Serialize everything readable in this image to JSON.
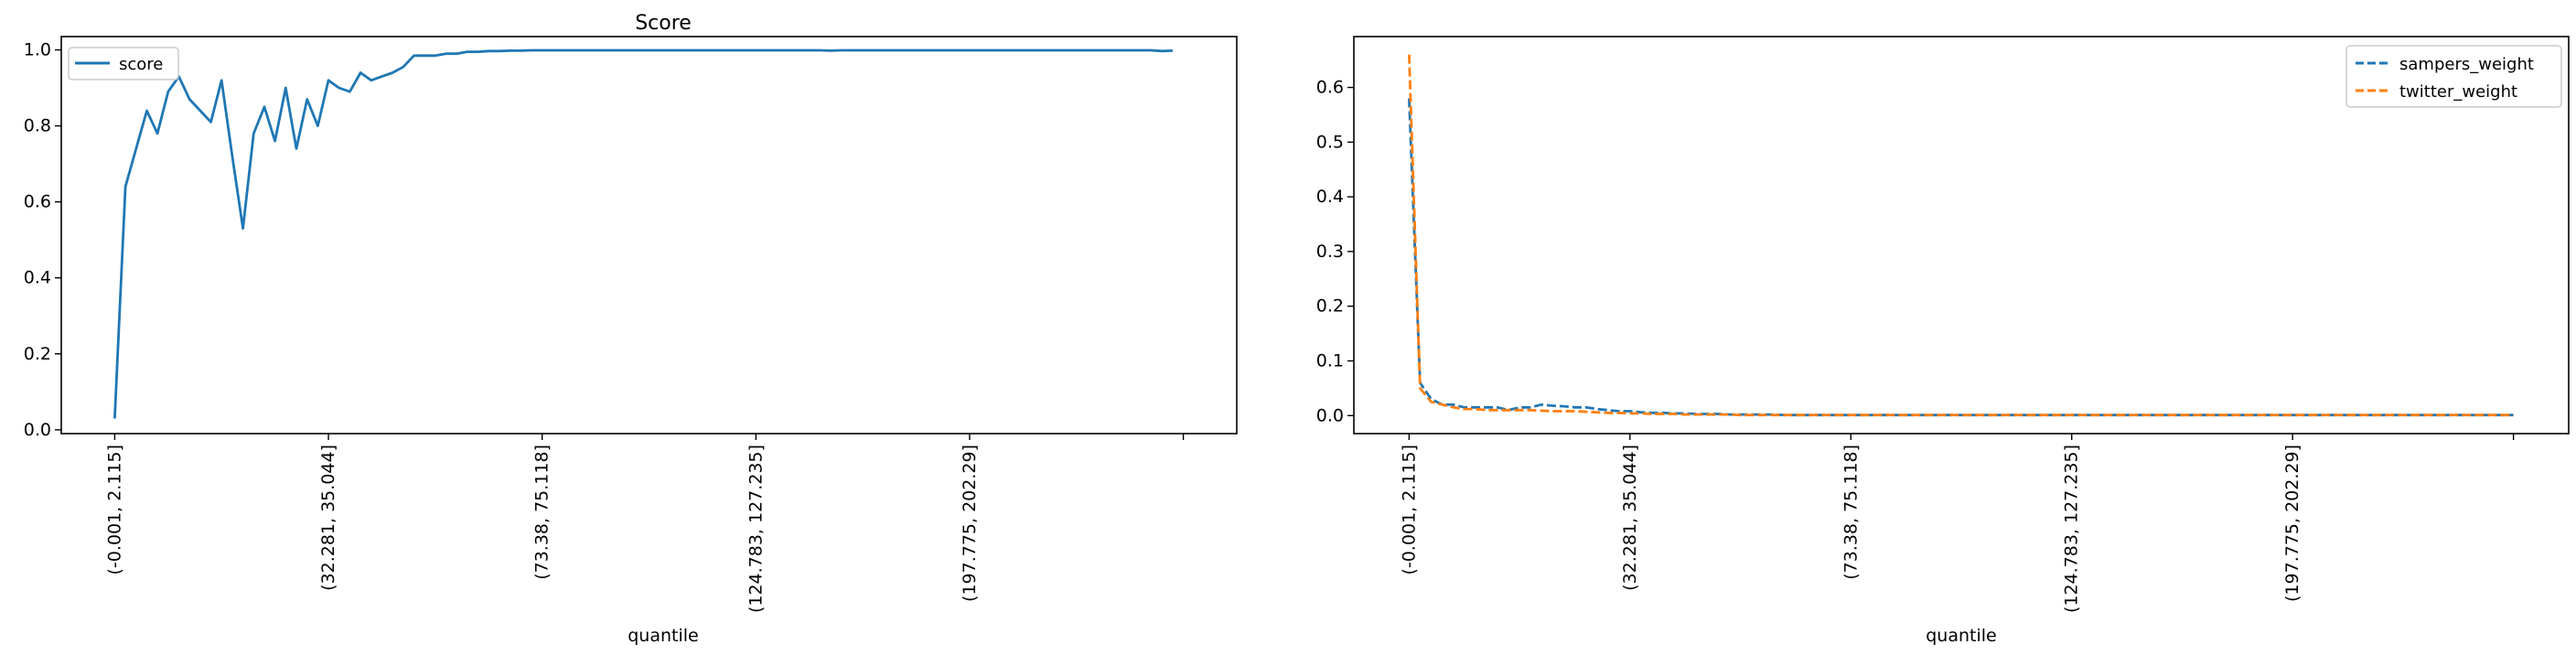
{
  "chart_data": [
    {
      "type": "line",
      "title": "Score",
      "xlabel": "quantile",
      "ylabel": "",
      "ylim": [
        -0.01,
        1.035
      ],
      "xlim": [
        -5,
        105
      ],
      "grid": false,
      "legend_position": "top-left",
      "xtick_positions": [
        0,
        20,
        40,
        60,
        80,
        100
      ],
      "xtick_labels": [
        "(-0.001, 2.115]",
        "(32.281, 35.044]",
        "(73.38, 75.118]",
        "(124.783, 127.235]",
        "(197.775, 202.29]",
        ""
      ],
      "yticks": [
        0.0,
        0.2,
        0.4,
        0.6,
        0.8,
        1.0
      ],
      "ytick_labels": [
        "0.0",
        "0.2",
        "0.4",
        "0.6",
        "0.8",
        "1.0"
      ],
      "series": [
        {
          "name": "score",
          "color": "#1f77b4",
          "dash": "solid",
          "x": [
            0,
            1,
            2,
            3,
            4,
            5,
            6,
            7,
            8,
            9,
            10,
            11,
            12,
            13,
            14,
            15,
            16,
            17,
            18,
            19,
            20,
            21,
            22,
            23,
            24,
            25,
            26,
            27,
            28,
            29,
            30,
            31,
            32,
            33,
            34,
            35,
            36,
            37,
            38,
            39,
            40,
            41,
            42,
            43,
            44,
            45,
            46,
            47,
            48,
            49,
            50,
            51,
            52,
            53,
            54,
            55,
            56,
            57,
            58,
            59,
            60,
            61,
            62,
            63,
            64,
            65,
            66,
            67,
            68,
            69,
            70,
            71,
            72,
            73,
            74,
            75,
            76,
            77,
            78,
            79,
            80,
            81,
            82,
            83,
            84,
            85,
            86,
            87,
            88,
            89,
            90,
            91,
            92,
            93,
            94,
            95,
            96,
            97,
            98,
            99
          ],
          "y": [
            0.03,
            0.64,
            0.74,
            0.84,
            0.78,
            0.89,
            0.93,
            0.87,
            0.84,
            0.81,
            0.92,
            0.72,
            0.53,
            0.78,
            0.85,
            0.76,
            0.9,
            0.74,
            0.87,
            0.8,
            0.92,
            0.9,
            0.89,
            0.94,
            0.92,
            0.93,
            0.94,
            0.955,
            0.985,
            0.985,
            0.985,
            0.99,
            0.99,
            0.995,
            0.995,
            0.997,
            0.997,
            0.998,
            0.998,
            0.999,
            0.999,
            0.999,
            0.999,
            0.999,
            0.999,
            0.999,
            0.999,
            0.999,
            0.999,
            0.999,
            0.999,
            0.999,
            0.999,
            0.999,
            0.999,
            0.999,
            0.999,
            0.999,
            0.999,
            0.999,
            0.999,
            0.999,
            0.999,
            0.999,
            0.999,
            0.999,
            0.999,
            0.998,
            0.999,
            0.999,
            0.999,
            0.999,
            0.999,
            0.999,
            0.999,
            0.999,
            0.999,
            0.999,
            0.999,
            0.999,
            0.999,
            0.999,
            0.999,
            0.999,
            0.999,
            0.999,
            0.999,
            0.999,
            0.999,
            0.999,
            0.999,
            0.999,
            0.999,
            0.999,
            0.999,
            0.999,
            0.999,
            0.999,
            0.997,
            0.998
          ]
        }
      ]
    },
    {
      "type": "line",
      "title": "",
      "xlabel": "quantile",
      "ylabel": "",
      "ylim": [
        -0.033,
        0.693
      ],
      "xlim": [
        -5,
        105
      ],
      "grid": false,
      "legend_position": "top-right",
      "xtick_positions": [
        0,
        20,
        40,
        60,
        80,
        100
      ],
      "xtick_labels": [
        "(-0.001, 2.115]",
        "(32.281, 35.044]",
        "(73.38, 75.118]",
        "(124.783, 127.235]",
        "(197.775, 202.29]",
        ""
      ],
      "yticks": [
        0.0,
        0.1,
        0.2,
        0.3,
        0.4,
        0.5,
        0.6
      ],
      "ytick_labels": [
        "0.0",
        "0.1",
        "0.2",
        "0.3",
        "0.4",
        "0.5",
        "0.6"
      ],
      "series": [
        {
          "name": "sampers_weight",
          "color": "#1f77b4",
          "dash": "dashed",
          "x": [
            0,
            1,
            2,
            3,
            4,
            5,
            6,
            7,
            8,
            9,
            10,
            11,
            12,
            13,
            14,
            15,
            16,
            17,
            18,
            19,
            20,
            21,
            22,
            23,
            24,
            25,
            26,
            27,
            28,
            29,
            30,
            31,
            32,
            33,
            34,
            35,
            36,
            37,
            38,
            39,
            40,
            41,
            42,
            43,
            44,
            45,
            46,
            47,
            48,
            49,
            50,
            51,
            52,
            53,
            54,
            55,
            56,
            57,
            58,
            59,
            60,
            61,
            62,
            63,
            64,
            65,
            66,
            67,
            68,
            69,
            70,
            71,
            72,
            73,
            74,
            75,
            76,
            77,
            78,
            79,
            80,
            81,
            82,
            83,
            84,
            85,
            86,
            87,
            88,
            89,
            90,
            91,
            92,
            93,
            94,
            95,
            96,
            97,
            98,
            99,
            100
          ],
          "y": [
            0.58,
            0.06,
            0.03,
            0.02,
            0.02,
            0.015,
            0.015,
            0.015,
            0.015,
            0.01,
            0.015,
            0.015,
            0.02,
            0.018,
            0.017,
            0.015,
            0.015,
            0.012,
            0.01,
            0.008,
            0.008,
            0.006,
            0.005,
            0.005,
            0.004,
            0.004,
            0.003,
            0.003,
            0.003,
            0.002,
            0.002,
            0.002,
            0.002,
            0.002,
            0.001,
            0.001,
            0.001,
            0.001,
            0.001,
            0.001,
            0.001,
            0.001,
            0.001,
            0.001,
            0.001,
            0.001,
            0.001,
            0.001,
            0.001,
            0.001,
            0.001,
            0.001,
            0.001,
            0.001,
            0.001,
            0.001,
            0.001,
            0.001,
            0.001,
            0.001,
            0.001,
            0.001,
            0.001,
            0.001,
            0.001,
            0.001,
            0.001,
            0.001,
            0.001,
            0.001,
            0.001,
            0.001,
            0.001,
            0.001,
            0.001,
            0.001,
            0.001,
            0.001,
            0.001,
            0.001,
            0.001,
            0.001,
            0.001,
            0.001,
            0.001,
            0.001,
            0.001,
            0.001,
            0.001,
            0.001,
            0.001,
            0.001,
            0.001,
            0.001,
            0.001,
            0.001,
            0.001,
            0.001,
            0.001,
            0.001,
            0.001
          ]
        },
        {
          "name": "twitter_weight",
          "color": "#ff7f0e",
          "dash": "dashed",
          "x": [
            0,
            1,
            2,
            3,
            4,
            5,
            6,
            7,
            8,
            9,
            10,
            11,
            12,
            13,
            14,
            15,
            16,
            17,
            18,
            19,
            20,
            21,
            22,
            23,
            24,
            25,
            26,
            27,
            28,
            29,
            30,
            31,
            32,
            33,
            34,
            35,
            36,
            37,
            38,
            39,
            40,
            41,
            42,
            43,
            44,
            45,
            46,
            47,
            48,
            49,
            50,
            51,
            52,
            53,
            54,
            55,
            56,
            57,
            58,
            59,
            60,
            61,
            62,
            63,
            64,
            65,
            66,
            67,
            68,
            69,
            70,
            71,
            72,
            73,
            74,
            75,
            76,
            77,
            78,
            79,
            80,
            81,
            82,
            83,
            84,
            85,
            86,
            87,
            88,
            89,
            90,
            91,
            92,
            93,
            94,
            95,
            96,
            97,
            98,
            99,
            100
          ],
          "y": [
            0.66,
            0.05,
            0.025,
            0.02,
            0.015,
            0.012,
            0.012,
            0.01,
            0.01,
            0.01,
            0.01,
            0.01,
            0.009,
            0.008,
            0.008,
            0.008,
            0.007,
            0.006,
            0.005,
            0.005,
            0.004,
            0.004,
            0.003,
            0.003,
            0.003,
            0.002,
            0.002,
            0.002,
            0.002,
            0.002,
            0.001,
            0.001,
            0.001,
            0.001,
            0.001,
            0.001,
            0.001,
            0.001,
            0.001,
            0.001,
            0.001,
            0.001,
            0.001,
            0.001,
            0.001,
            0.001,
            0.001,
            0.001,
            0.001,
            0.001,
            0.001,
            0.001,
            0.001,
            0.001,
            0.001,
            0.001,
            0.001,
            0.001,
            0.001,
            0.001,
            0.001,
            0.001,
            0.001,
            0.001,
            0.001,
            0.001,
            0.001,
            0.001,
            0.001,
            0.001,
            0.001,
            0.001,
            0.001,
            0.001,
            0.001,
            0.001,
            0.001,
            0.001,
            0.001,
            0.001,
            0.001,
            0.001,
            0.001,
            0.001,
            0.001,
            0.001,
            0.001,
            0.001,
            0.001,
            0.001,
            0.001,
            0.001,
            0.001,
            0.001,
            0.001,
            0.001,
            0.001,
            0.001,
            0.001,
            0.001,
            0.001
          ]
        }
      ]
    }
  ]
}
